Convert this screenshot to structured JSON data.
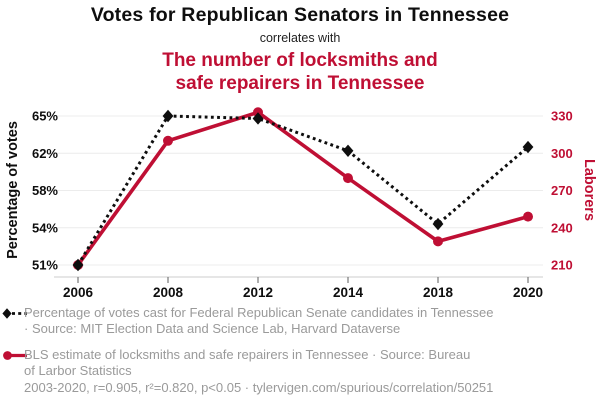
{
  "header": {
    "title": "Votes for Republican Senators in Tennessee",
    "subtitle": "correlates with",
    "secondary_title": "The number of locksmiths and\nsafe repairers in Tennessee"
  },
  "chart_data": {
    "type": "line",
    "x_labels": [
      "2006",
      "2008",
      "2012",
      "2014",
      "2018",
      "2020"
    ],
    "series": [
      {
        "name": "Percentage of votes cast for Federal Republican Senate candidates in Tennessee",
        "axis": "left",
        "color": "#0e0e0e",
        "line_style": "dotted",
        "marker": "diamond",
        "values": [
          51.0,
          65.0,
          64.8,
          62.2,
          54.4,
          62.5
        ]
      },
      {
        "name": "BLS estimate of locksmiths and safe repairers in Tennessee",
        "axis": "right",
        "color": "#bf0f34",
        "line_style": "solid",
        "marker": "circle",
        "values": [
          210,
          310,
          333,
          280,
          229,
          249
        ]
      }
    ],
    "left_axis": {
      "label": "Percentage of votes",
      "tick_labels": [
        "51%",
        "54%",
        "58%",
        "62%",
        "65%"
      ],
      "tick_values": [
        51,
        54,
        58,
        62,
        65
      ]
    },
    "right_axis": {
      "label": "Laborers",
      "tick_labels": [
        "210",
        "240",
        "270",
        "300",
        "330"
      ],
      "tick_values": [
        210,
        240,
        270,
        300,
        330
      ]
    },
    "grid": true,
    "legend_position": "bottom"
  },
  "legend": {
    "items": [
      {
        "marker": "black-diamond-dotted-line",
        "label": "Percentage of votes cast for Federal Republican Senate candidates in Tennessee\n· Source: MIT Election Data and Science Lab, Harvard Dataverse"
      },
      {
        "marker": "red-circle-solid-line",
        "label": "BLS estimate of locksmiths and safe repairers in Tennessee · Source: Bureau\nof Larbor Statistics"
      }
    ],
    "footer": "2003-2020, r=0.905, r²=0.820, p<0.05 · tylervigen.com/spurious/correlation/50251"
  },
  "colors": {
    "accent_red": "#bf0f34",
    "series_black": "#0e0e0e",
    "legend_gray": "#9a9a9a",
    "grid_gray": "#ececec",
    "axis_gray": "#cccccc",
    "tick_stub_gray": "#777777"
  }
}
